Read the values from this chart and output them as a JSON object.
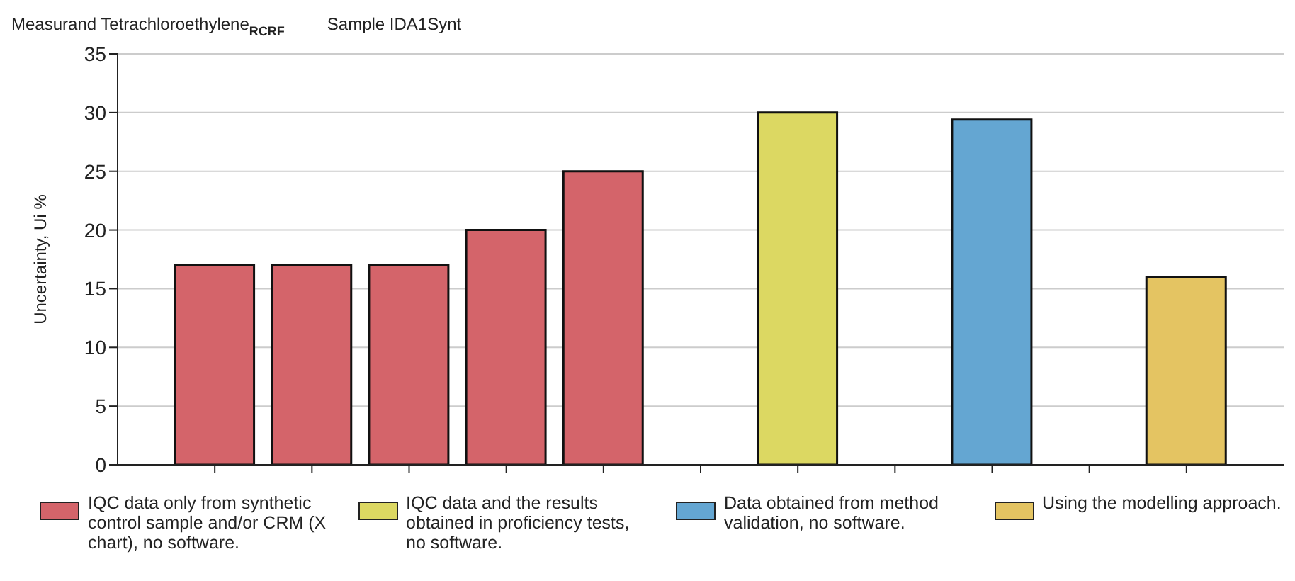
{
  "chart_data": {
    "type": "bar",
    "title": "Measurand Tetrachloroethylene$_{RCRF}$",
    "subtitle": "Sample IDA1Synt",
    "ylabel": "Uncertainty, Ui %",
    "categories": [
      null,
      null,
      null,
      null,
      null,
      null,
      null,
      null,
      null,
      null,
      null
    ],
    "series": [
      {
        "name": "IQC data only from synthetic control sample and/or CRM (X chart), no software.",
        "color": "#d4646a",
        "values": [
          17,
          17,
          17,
          20,
          25,
          null,
          null,
          null,
          null,
          null,
          null
        ]
      },
      {
        "name": "IQC data and the results obtained in proficiency tests, no software.",
        "color": "#dcd862",
        "values": [
          null,
          null,
          null,
          null,
          null,
          null,
          30,
          null,
          null,
          null,
          null
        ]
      },
      {
        "name": "Data obtained from method validation, no software.",
        "color": "#64a6d2",
        "values": [
          null,
          null,
          null,
          null,
          null,
          null,
          null,
          null,
          29.4,
          null,
          null
        ]
      },
      {
        "name": "Using the modelling approach.",
        "color": "#e4c462",
        "values": [
          null,
          null,
          null,
          null,
          null,
          null,
          null,
          null,
          null,
          null,
          16
        ]
      }
    ],
    "ylim": [
      0,
      35
    ],
    "yticks": [
      0,
      5,
      10,
      15,
      20,
      25,
      30,
      35
    ],
    "grid": "y",
    "legend": "bottom"
  }
}
